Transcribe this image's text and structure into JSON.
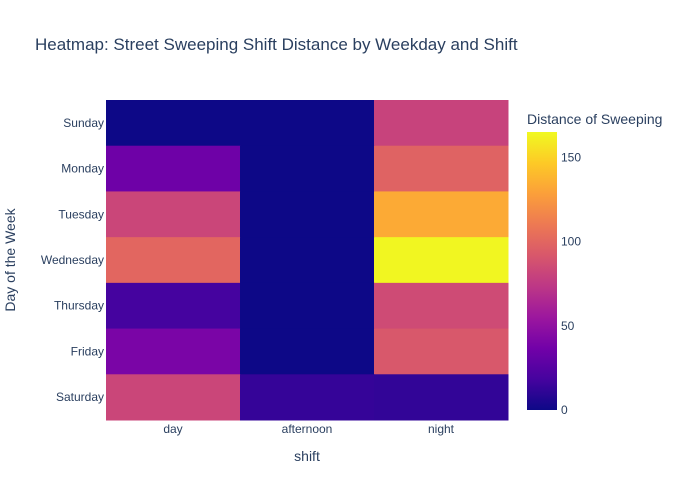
{
  "chart_data": {
    "type": "heatmap",
    "title": "Heatmap: Street Sweeping Shift Distance by Weekday and Shift",
    "xlabel": "shift",
    "ylabel": "Day of the Week",
    "x": [
      "day",
      "afternoon",
      "night"
    ],
    "y": [
      "Sunday",
      "Monday",
      "Tuesday",
      "Wednesday",
      "Thursday",
      "Friday",
      "Saturday"
    ],
    "z": [
      [
        0,
        0,
        80
      ],
      [
        35,
        0,
        98
      ],
      [
        82,
        0,
        133
      ],
      [
        100,
        0,
        164
      ],
      [
        18,
        0,
        85
      ],
      [
        40,
        0,
        92
      ],
      [
        82,
        13,
        12
      ]
    ],
    "colorbar": {
      "title": "Distance of Sweeping",
      "range": [
        0,
        165
      ],
      "ticks": [
        0,
        50,
        100,
        150
      ],
      "tick_labels": [
        "0",
        "50",
        "100",
        "150"
      ],
      "colorscale": "plasma"
    },
    "colors": [
      "#0d0887",
      "#46039f",
      "#7201a8",
      "#9c179e",
      "#bd3786",
      "#d8576b",
      "#ed7953",
      "#fb9f3a",
      "#fdca26",
      "#f0f921"
    ]
  }
}
